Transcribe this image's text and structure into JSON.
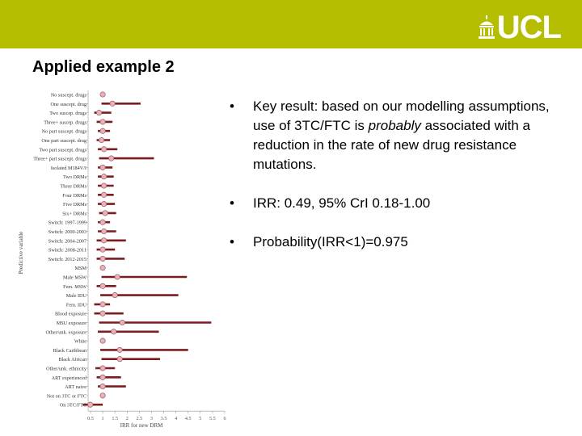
{
  "header": {
    "logo_text": "UCL",
    "bar_color": "#b5bd00"
  },
  "slide": {
    "title": "Applied example 2",
    "bullets": [
      {
        "pre": "Key result: based on our modelling assumptions, use of 3TC/FTC is ",
        "emph": "probably",
        "post": " associated with a reduction in the rate of new drug resistance mutations."
      },
      {
        "text": "IRR: 0.49, 95% CrI 0.18-1.00"
      },
      {
        "text": "Probability(IRR<1)=0.975"
      }
    ],
    "bullet_symbol": "•"
  },
  "chart_data": {
    "type": "scatter",
    "title": "",
    "xlabel": "IRR for new DRM",
    "ylabel": "Predictive variable",
    "xlim": [
      0.5,
      6
    ],
    "x_ticks": [
      "0.5",
      "1",
      "1.5",
      "2",
      "2.5",
      "3",
      "3.5",
      "4",
      "4.5",
      "5",
      "5.5",
      "6"
    ],
    "point_color": "#e8b0b8",
    "bar_color": "#7a1c20",
    "categories": [
      "No suscept. drugs",
      "One suscept. drug",
      "Two suscep. drugs",
      "Three+ suscep. drugs",
      "No part suscept. drugs",
      "One part suscept. drug",
      "Two part suscept. drugs",
      "Three+ part suscept. drugs",
      "Isolated M184V/I",
      "Two DRMs",
      "Three DRMs",
      "Four DRMs",
      "Five DRMs",
      "Six+ DRMs",
      "Switch: 1997-1999",
      "Switch: 2000-2003",
      "Switch: 2004-2007",
      "Switch: 2008-2011",
      "Switch: 2012-2015",
      "MSM",
      "Male MSW",
      "Fem. MSW",
      "Male IDU",
      "Fem. IDU",
      "Blood exposure",
      "MSU exposure",
      "Other/unk. exposure",
      "White",
      "Black Caribbean",
      "Black African",
      "Other/unk. ethnicity",
      "ART experienced",
      "ART naive",
      "Not on 3TC or FTC",
      "On 3TC/FTC"
    ],
    "estimate": [
      1.0,
      1.4,
      0.85,
      1.0,
      1.0,
      0.95,
      1.05,
      1.35,
      1.0,
      1.05,
      1.05,
      1.05,
      1.05,
      1.1,
      1.0,
      1.05,
      1.05,
      1.0,
      1.0,
      1.0,
      1.6,
      1.0,
      1.5,
      1.0,
      1.0,
      1.8,
      1.45,
      1.0,
      1.7,
      1.7,
      1.0,
      1.0,
      1.0,
      1.0,
      0.49
    ],
    "lower": [
      1.0,
      0.95,
      0.65,
      0.75,
      0.8,
      0.75,
      0.8,
      0.85,
      0.8,
      0.8,
      0.8,
      0.8,
      0.8,
      0.85,
      0.8,
      0.8,
      0.75,
      0.75,
      0.75,
      1.0,
      0.95,
      0.75,
      0.9,
      0.65,
      0.65,
      0.85,
      0.8,
      1.0,
      0.9,
      0.95,
      0.7,
      0.75,
      0.8,
      1.0,
      0.18
    ],
    "upper": [
      1.0,
      2.55,
      1.35,
      1.4,
      1.3,
      1.3,
      1.6,
      3.1,
      1.4,
      1.45,
      1.45,
      1.45,
      1.5,
      1.55,
      1.3,
      1.55,
      1.95,
      1.5,
      1.9,
      1.0,
      4.45,
      1.55,
      4.1,
      1.3,
      1.85,
      5.45,
      3.3,
      1.0,
      4.5,
      3.35,
      1.5,
      1.75,
      1.95,
      1.0,
      1.0
    ]
  }
}
